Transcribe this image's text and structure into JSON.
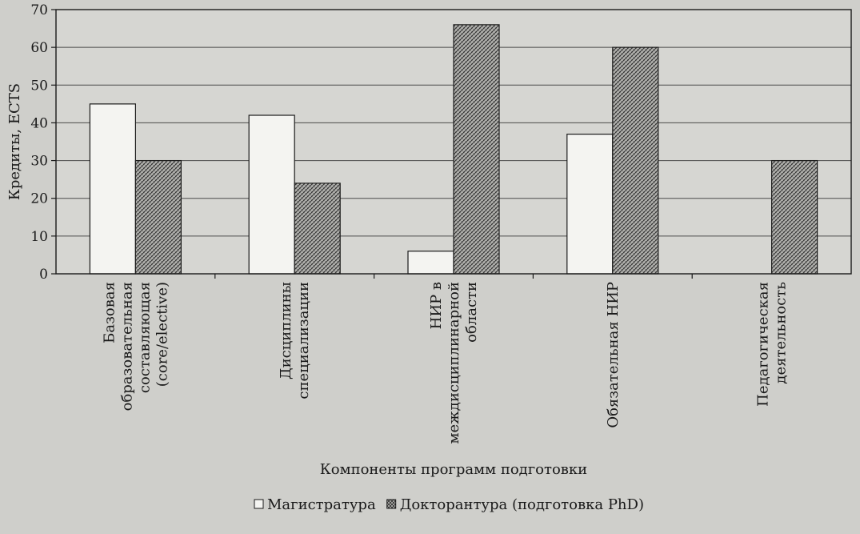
{
  "chart_data": {
    "type": "bar",
    "categories": [
      [
        "Базовая",
        "образовательная",
        "составляющая",
        "(core/elective)"
      ],
      [
        "Дисциплины",
        "специализации"
      ],
      [
        "НИР в",
        "междисциплинарной",
        "области"
      ],
      [
        "Обязательная НИР"
      ],
      [
        "Педагогическая",
        "деятельность"
      ]
    ],
    "series": [
      {
        "name": "Магистратура",
        "values": [
          45,
          42,
          6,
          37,
          0
        ],
        "fill": "#f4f4f1"
      },
      {
        "name": "Докторантура (подготовка PhD)",
        "values": [
          30,
          24,
          66,
          60,
          30
        ],
        "fill": "hatch"
      }
    ],
    "title": "",
    "xlabel": "Компоненты программ подготовки",
    "ylabel": "Кредиты, ECTS",
    "ylim": [
      0,
      70
    ],
    "yticks": [
      0,
      10,
      20,
      30,
      40,
      50,
      60,
      70
    ],
    "grid": true,
    "legend_position": "bottom"
  },
  "colors": {
    "background": "#cfcfcb",
    "plot_area": "#d6d6d2",
    "ink": "#1a1a1a"
  }
}
